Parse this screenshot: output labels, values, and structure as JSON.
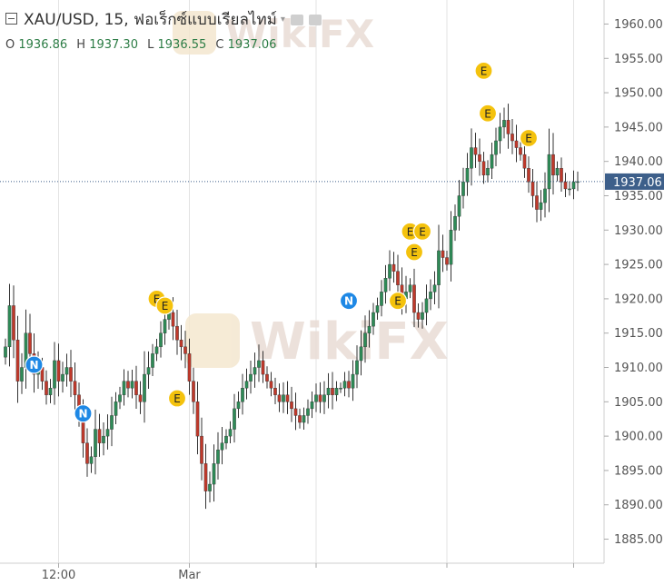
{
  "header": {
    "symbol": "XAU/USD",
    "interval": "15",
    "source": "ฟอเร็กซ์แบบเรียลไทม์"
  },
  "ohlc": {
    "open_label": "O",
    "open": "1936.86",
    "high_label": "H",
    "high": "1937.30",
    "low_label": "L",
    "low": "1936.55",
    "close_label": "C",
    "close": "1937.06"
  },
  "watermark": "WikiFX",
  "colors": {
    "up": "#2e8b57",
    "down": "#c0392b",
    "price_line": "#3d5f8a",
    "price_tag": "#3d5f8a",
    "event_earnings": "#f4c20d",
    "event_news": "#1e88e5",
    "axis_text": "#555555",
    "grid": "#e3e3e3"
  },
  "chart_data": {
    "type": "candlestick",
    "symbol": "XAU/USD",
    "interval": "15",
    "last_price": 1937.06,
    "y_range": [
      1881.5,
      1963.5
    ],
    "y_ticks": [
      1960,
      1955,
      1950,
      1945,
      1940,
      1935,
      1930,
      1925,
      1920,
      1915,
      1910,
      1905,
      1900,
      1895,
      1890,
      1885
    ],
    "y_tick_labels": [
      "1960.00",
      "1955.00",
      "1950.00",
      "1945.00",
      "1940.00",
      "1935.00",
      "1930.00",
      "1925.00",
      "1920.00",
      "1915.00",
      "1910.00",
      "1905.00",
      "1900.00",
      "1895.00",
      "1890.00",
      "1885.00"
    ],
    "x_labels": [
      {
        "label": "12:00",
        "bar": 13
      },
      {
        "label": "Mar",
        "bar": 45
      }
    ],
    "grid": {
      "vertical_at_bars": [
        13,
        45,
        76,
        108,
        139
      ],
      "horizontal": false
    },
    "closes": [
      1913,
      1919,
      1914,
      1908,
      1910,
      1915,
      1912,
      1909,
      1910,
      1908,
      1906,
      1907,
      1911,
      1908,
      1909,
      1910,
      1908,
      1906,
      1903,
      1899,
      1896,
      1897,
      1901,
      1899,
      1900,
      1901,
      1903,
      1905,
      1906,
      1908,
      1907,
      1908,
      1906,
      1905,
      1909,
      1910,
      1912,
      1913,
      1915,
      1917,
      1918,
      1916,
      1914,
      1913,
      1912,
      1908,
      1905,
      1900,
      1896,
      1892,
      1893,
      1896,
      1898,
      1899,
      1900,
      1901,
      1904,
      1905,
      1907,
      1908,
      1909,
      1910,
      1911,
      1909,
      1908,
      1907,
      1906,
      1905,
      1906,
      1905,
      1904,
      1903,
      1902,
      1903,
      1904,
      1905,
      1906,
      1905,
      1906,
      1907,
      1906,
      1907,
      1907,
      1908,
      1907,
      1909,
      1911,
      1913,
      1915,
      1916,
      1918,
      1919,
      1921,
      1923,
      1925,
      1924,
      1922,
      1920,
      1921,
      1922,
      1918,
      1917,
      1918,
      1920,
      1921,
      1922,
      1927,
      1926,
      1925,
      1930,
      1932,
      1935,
      1937,
      1939,
      1942,
      1941,
      1940,
      1938,
      1939,
      1941,
      1943,
      1945,
      1946,
      1944,
      1943,
      1942,
      1941,
      1939,
      1937,
      1935,
      1933,
      1934,
      1936,
      1941,
      1938,
      1939,
      1937,
      1936,
      1936,
      1937,
      1937.06
    ],
    "events": [
      {
        "type": "N",
        "bar": 7,
        "price": 1910.4
      },
      {
        "type": "N",
        "bar": 19,
        "price": 1903.3
      },
      {
        "type": "E",
        "bar": 37,
        "price": 1920.0
      },
      {
        "type": "E",
        "bar": 39,
        "price": 1919.0
      },
      {
        "type": "E",
        "bar": 42,
        "price": 1905.5
      },
      {
        "type": "N",
        "bar": 84,
        "price": 1919.7
      },
      {
        "type": "E",
        "bar": 96,
        "price": 1919.7
      },
      {
        "type": "E",
        "bar": 99,
        "price": 1929.8
      },
      {
        "type": "E",
        "bar": 100,
        "price": 1926.8
      },
      {
        "type": "E",
        "bar": 102,
        "price": 1929.8
      },
      {
        "type": "E",
        "bar": 117,
        "price": 1953.2
      },
      {
        "type": "E",
        "bar": 118,
        "price": 1947.0
      },
      {
        "type": "E",
        "bar": 128,
        "price": 1943.4
      }
    ]
  }
}
